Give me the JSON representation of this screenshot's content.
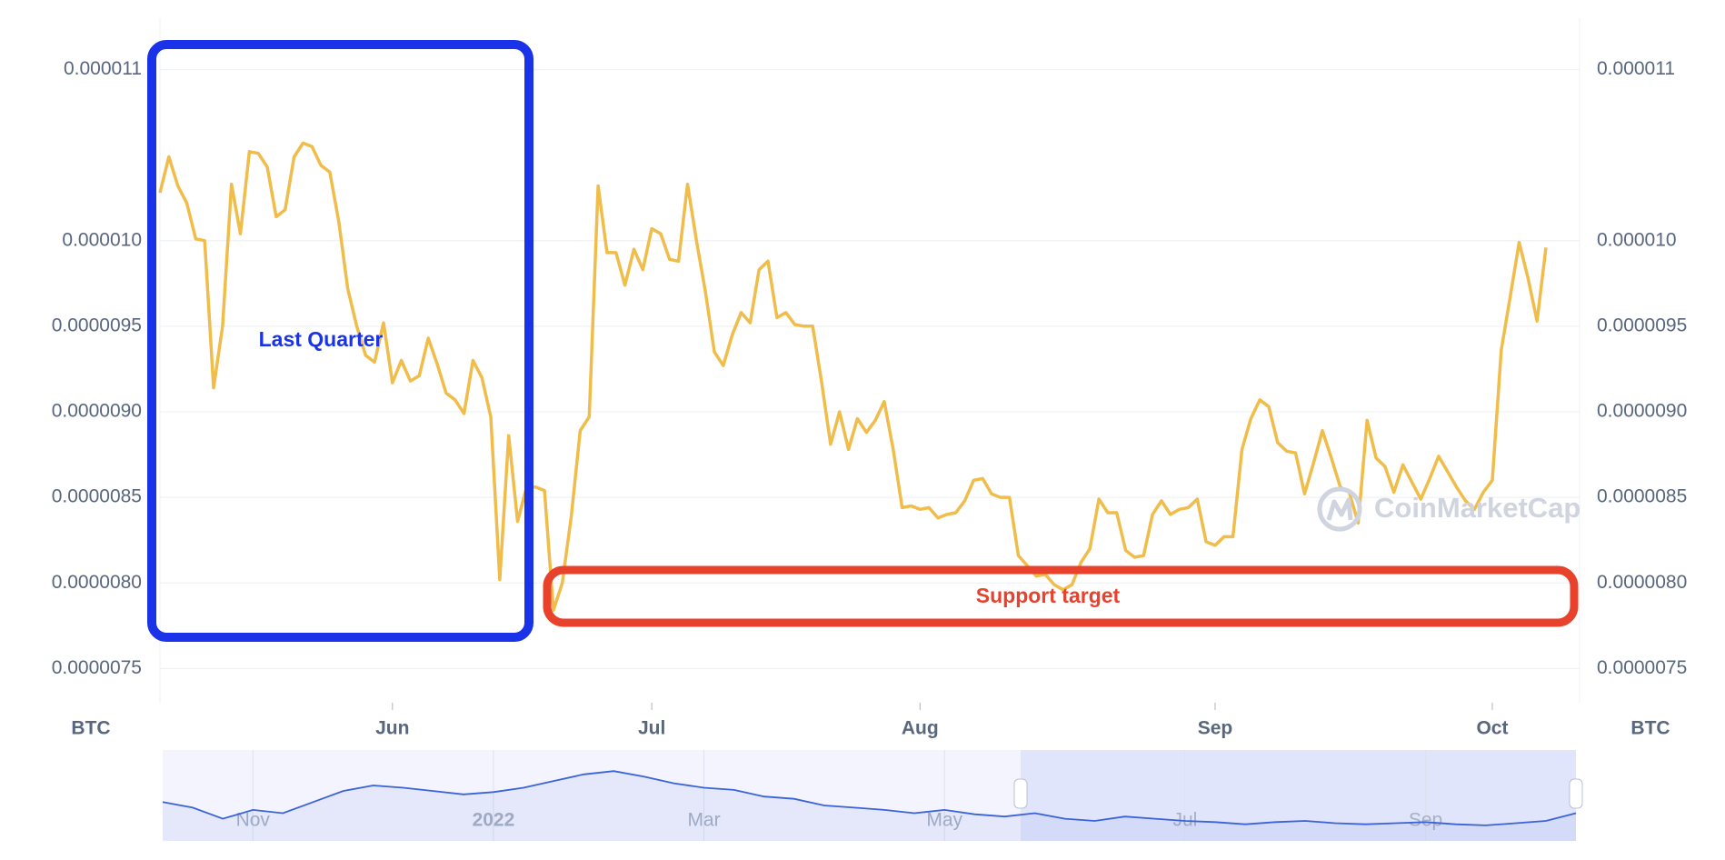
{
  "chart_data": [
    {
      "type": "line",
      "y_unit": "BTC",
      "color": "#f0bc4a",
      "grid": true,
      "annotations": [
        "Last Quarter",
        "Support target"
      ],
      "watermark": "CoinMarketCap",
      "ylim": [
        7.3e-06,
        1.13e-05
      ],
      "yticks": [
        7.5e-06,
        {
          "value": 8e-06,
          "label": "0.0000080"
        },
        8.5e-06,
        {
          "value": 9e-06,
          "label": "0.0000090"
        },
        9.5e-06,
        {
          "value": 1e-05,
          "label": "0.000010"
        },
        1.1e-05
      ],
      "categories": [
        null,
        null,
        null,
        null,
        null,
        null,
        null,
        null,
        null,
        null,
        null,
        null,
        null,
        null,
        null,
        null,
        null,
        null,
        null,
        null,
        null,
        null,
        null,
        null,
        null,
        null,
        "Jun",
        null,
        null,
        null,
        null,
        null,
        null,
        null,
        null,
        null,
        null,
        null,
        null,
        null,
        null,
        null,
        null,
        null,
        null,
        null,
        null,
        null,
        null,
        null,
        null,
        null,
        null,
        null,
        null,
        "Jul",
        null,
        null,
        null,
        null,
        null,
        null,
        null,
        null,
        null,
        null,
        null,
        null,
        null,
        null,
        null,
        null,
        null,
        null,
        null,
        null,
        null,
        null,
        null,
        null,
        null,
        null,
        null,
        null,
        null,
        "Aug",
        null,
        null,
        null,
        null,
        null,
        null,
        null,
        null,
        null,
        null,
        null,
        null,
        null,
        null,
        null,
        null,
        null,
        null,
        null,
        null,
        null,
        null,
        null,
        null,
        null,
        null,
        null,
        null,
        null,
        null,
        null,
        null,
        "Sep",
        null,
        null,
        null,
        null,
        null,
        null,
        null,
        null,
        null,
        null,
        null,
        null,
        null,
        null,
        null,
        null,
        null,
        null,
        null,
        null,
        null,
        null,
        null,
        null,
        null,
        null,
        null,
        null,
        null,
        null,
        "Oct",
        null,
        null,
        null,
        null,
        null,
        null
      ],
      "values": [
        1.028e-05,
        1.049e-05,
        1.032e-05,
        1.022e-05,
        1.001e-05,
        1e-05,
        9.14e-06,
        9.5e-06,
        1.033e-05,
        1.004e-05,
        1.052e-05,
        1.051e-05,
        1.043e-05,
        1.014e-05,
        1.018e-05,
        1.049e-05,
        1.057e-05,
        1.055e-05,
        1.044e-05,
        1.04e-05,
        1.011e-05,
        9.72e-06,
        9.5e-06,
        9.33e-06,
        9.29e-06,
        9.52e-06,
        9.17e-06,
        9.3e-06,
        9.18e-06,
        9.21e-06,
        9.43e-06,
        9.28e-06,
        9.11e-06,
        9.07e-06,
        8.99e-06,
        9.3e-06,
        9.2e-06,
        8.97e-06,
        8.02e-06,
        8.86e-06,
        8.36e-06,
        8.56e-06,
        8.56e-06,
        8.54e-06,
        7.84e-06,
        8e-06,
        8.39e-06,
        8.89e-06,
        8.97e-06,
        1.032e-05,
        9.93e-06,
        9.93e-06,
        9.74e-06,
        9.95e-06,
        9.83e-06,
        1.007e-05,
        1.004e-05,
        9.89e-06,
        9.88e-06,
        1.033e-05,
        1e-05,
        9.7e-06,
        9.35e-06,
        9.27e-06,
        9.45e-06,
        9.58e-06,
        9.52e-06,
        9.83e-06,
        9.88e-06,
        9.55e-06,
        9.58e-06,
        9.51e-06,
        9.5e-06,
        9.5e-06,
        9.17e-06,
        8.81e-06,
        9e-06,
        8.78e-06,
        8.96e-06,
        8.88e-06,
        8.95e-06,
        9.06e-06,
        8.78e-06,
        8.44e-06,
        8.45e-06,
        8.43e-06,
        8.44e-06,
        8.38e-06,
        8.4e-06,
        8.41e-06,
        8.48e-06,
        8.6e-06,
        8.61e-06,
        8.52e-06,
        8.5e-06,
        8.5e-06,
        8.16e-06,
        8.1e-06,
        8.04e-06,
        8.05e-06,
        7.99e-06,
        7.96e-06,
        7.99e-06,
        8.12e-06,
        8.2e-06,
        8.49e-06,
        8.41e-06,
        8.41e-06,
        8.19e-06,
        8.15e-06,
        8.16e-06,
        8.4e-06,
        8.48e-06,
        8.4e-06,
        8.43e-06,
        8.44e-06,
        8.49e-06,
        8.24e-06,
        8.22e-06,
        8.27e-06,
        8.27e-06,
        8.78e-06,
        8.96e-06,
        9.07e-06,
        9.03e-06,
        8.82e-06,
        8.77e-06,
        8.76e-06,
        8.52e-06,
        8.7e-06,
        8.89e-06,
        8.73e-06,
        8.56e-06,
        8.53e-06,
        8.35e-06,
        8.95e-06,
        8.73e-06,
        8.68e-06,
        8.53e-06,
        8.69e-06,
        8.59e-06,
        8.49e-06,
        8.61e-06,
        8.74e-06,
        8.65e-06,
        8.56e-06,
        8.48e-06,
        8.43e-06,
        8.53e-06,
        8.6e-06,
        9.36e-06,
        9.67e-06,
        9.99e-06,
        9.78e-06,
        9.53e-06,
        9.96e-06
      ]
    },
    {
      "type": "area",
      "color": "#3b63d8",
      "ylim": [
        6.5e-06,
        1.47e-05
      ],
      "categories": [
        null,
        null,
        null,
        "Nov",
        null,
        null,
        null,
        null,
        null,
        null,
        null,
        "2022",
        null,
        null,
        null,
        null,
        null,
        null,
        "Mar",
        null,
        null,
        null,
        null,
        null,
        null,
        null,
        "May",
        null,
        null,
        null,
        null,
        null,
        null,
        null,
        "Jul",
        null,
        null,
        null,
        null,
        null,
        null,
        null,
        "Sep",
        null,
        null,
        null,
        null,
        null
      ],
      "values": [
        1e-05,
        9.5e-06,
        8.5e-06,
        9.3e-06,
        9e-06,
        1e-05,
        1.1e-05,
        1.15e-05,
        1.13e-05,
        1.1e-05,
        1.07e-05,
        1.09e-05,
        1.13e-05,
        1.19e-05,
        1.25e-05,
        1.28e-05,
        1.23e-05,
        1.17e-05,
        1.13e-05,
        1.11e-05,
        1.05e-05,
        1.03e-05,
        9.7e-06,
        9.5e-06,
        9.3e-06,
        9e-06,
        9.3e-06,
        8.9e-06,
        8.7e-06,
        9e-06,
        8.5e-06,
        8.3e-06,
        8.7e-06,
        8.5e-06,
        8.3e-06,
        8.2e-06,
        8e-06,
        8.2e-06,
        8.3e-06,
        8.1e-06,
        8e-06,
        8.1e-06,
        8.2e-06,
        8e-06,
        7.9e-06,
        8.1e-06,
        8.3e-06,
        9e-06
      ]
    }
  ]
}
